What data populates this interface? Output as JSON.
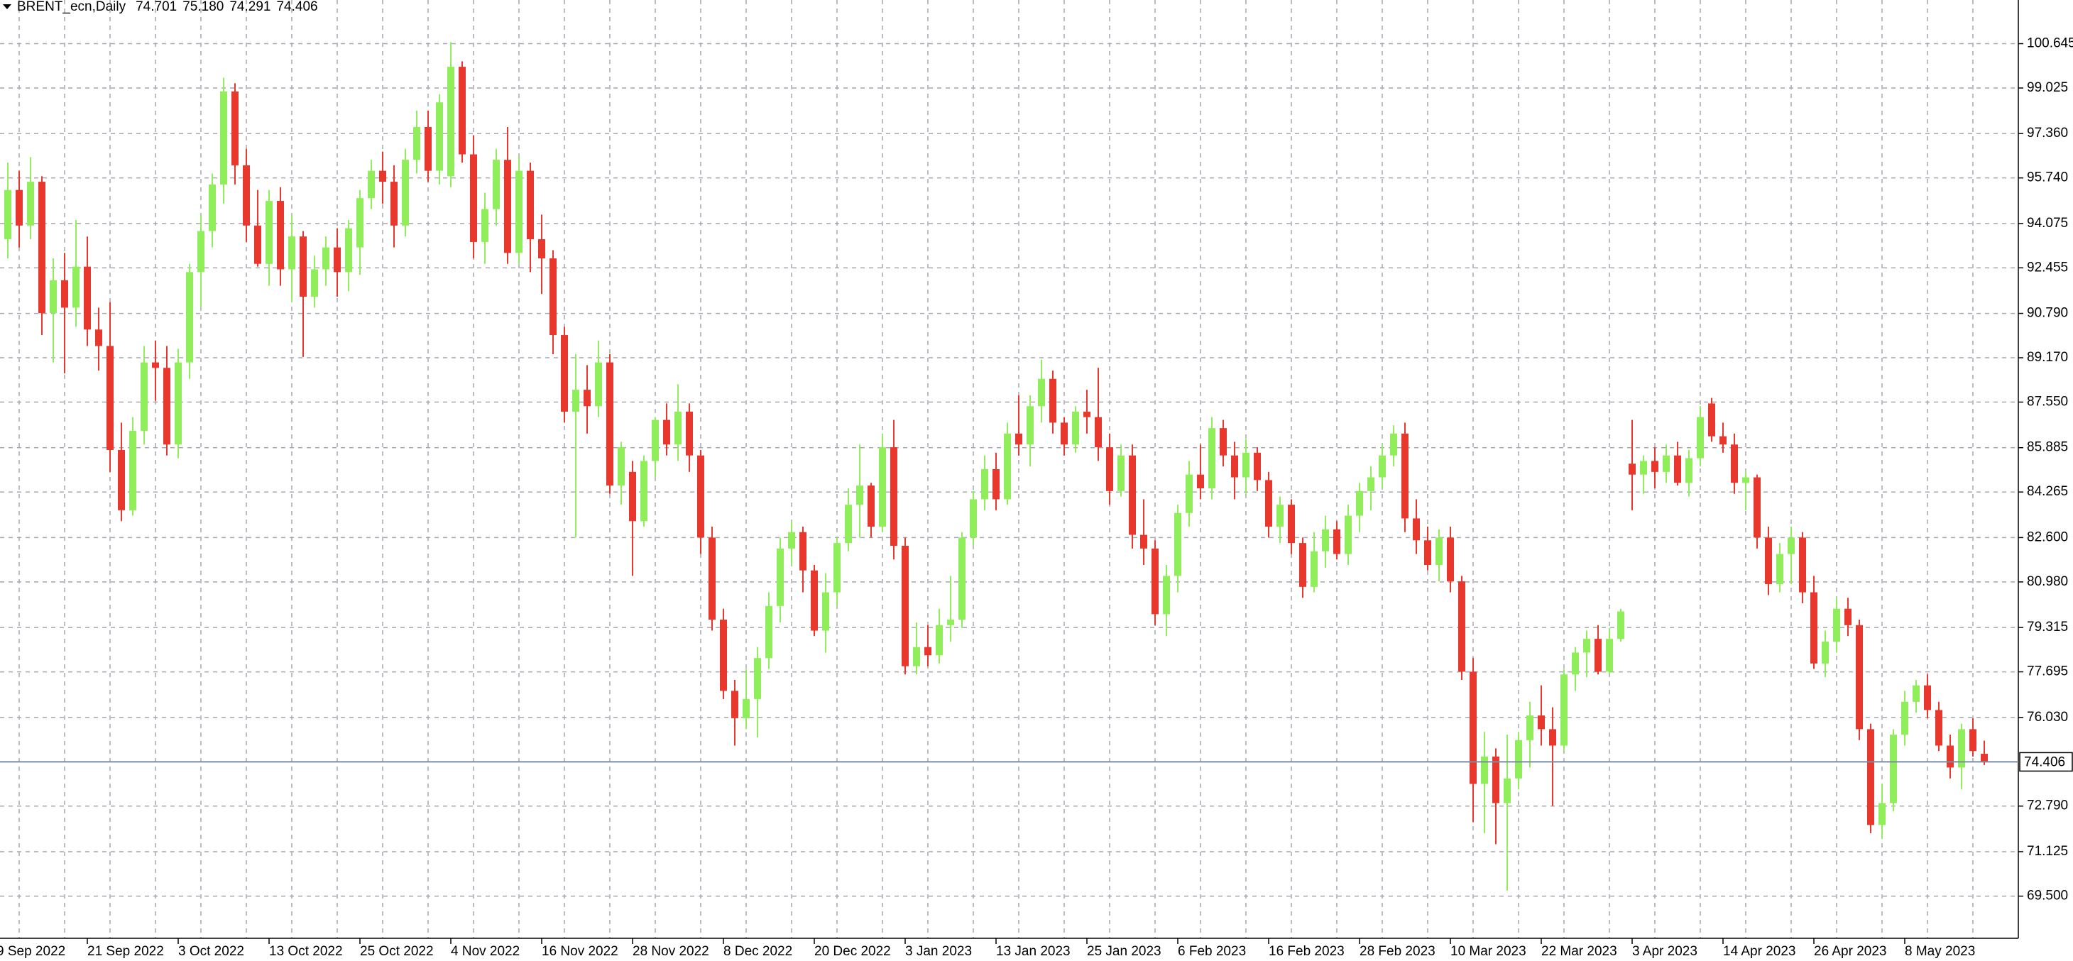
{
  "chart_data": {
    "type": "candlestick",
    "title": "BRENT_ecn,Daily",
    "value_labels": {
      "open": "74.701",
      "high": "75.180",
      "low": "74.291",
      "close": "74.406"
    },
    "up_color": "#8fee5a",
    "down_color": "#e8372d",
    "price_line_color": "#7a8ca0",
    "grid": true,
    "ylim": [
      67.96,
      102.24
    ],
    "yticks": [
      100.645,
      99.025,
      {
        "value": 97.36,
        "label": "97.360"
      },
      {
        "value": 95.74,
        "label": "95.740"
      },
      94.075,
      92.455,
      {
        "value": 90.79,
        "label": "90.790"
      },
      {
        "value": 89.17,
        "label": "89.170"
      },
      {
        "value": 87.55,
        "label": "87.550"
      },
      85.885,
      84.265,
      {
        "value": 82.6,
        "label": "82.600"
      },
      {
        "value": 80.98,
        "label": "80.980"
      },
      79.315,
      77.695,
      {
        "value": 76.03,
        "label": "76.030"
      },
      {
        "value": 72.79,
        "label": "72.790"
      },
      71.125,
      {
        "value": 69.5,
        "label": "69.500"
      }
    ],
    "categories": [
      "9 Sep 2022",
      null,
      null,
      null,
      null,
      null,
      null,
      null,
      "21 Sep 2022",
      null,
      null,
      null,
      null,
      null,
      null,
      null,
      "3 Oct 2022",
      null,
      null,
      null,
      null,
      null,
      null,
      null,
      "13 Oct 2022",
      null,
      null,
      null,
      null,
      null,
      null,
      null,
      "25 Oct 2022",
      null,
      null,
      null,
      null,
      null,
      null,
      null,
      "4 Nov 2022",
      null,
      null,
      null,
      null,
      null,
      null,
      null,
      "16 Nov 2022",
      null,
      null,
      null,
      null,
      null,
      null,
      null,
      "28 Nov 2022",
      null,
      null,
      null,
      null,
      null,
      null,
      null,
      "8 Dec 2022",
      null,
      null,
      null,
      null,
      null,
      null,
      null,
      "20 Dec 2022",
      null,
      null,
      null,
      null,
      null,
      null,
      null,
      "3 Jan 2023",
      null,
      null,
      null,
      null,
      null,
      null,
      null,
      "13 Jan 2023",
      null,
      null,
      null,
      null,
      null,
      null,
      null,
      "25 Jan 2023",
      null,
      null,
      null,
      null,
      null,
      null,
      null,
      "6 Feb 2023",
      null,
      null,
      null,
      null,
      null,
      null,
      null,
      "16 Feb 2023",
      null,
      null,
      null,
      null,
      null,
      null,
      null,
      "28 Feb 2023",
      null,
      null,
      null,
      null,
      null,
      null,
      null,
      "10 Mar 2023",
      null,
      null,
      null,
      null,
      null,
      null,
      null,
      "22 Mar 2023",
      null,
      null,
      null,
      null,
      null,
      null,
      null,
      "3 Apr 2023",
      null,
      null,
      null,
      null,
      null,
      null,
      null,
      "14 Apr 2023",
      null,
      null,
      null,
      null,
      null,
      null,
      null,
      "26 Apr 2023",
      null,
      null,
      null,
      null,
      null,
      null,
      null,
      "8 May 2023",
      null,
      null,
      null,
      null,
      null,
      null,
      null
    ],
    "open": [
      91.0,
      93.5,
      95.3,
      94.0,
      95.6,
      90.8,
      92.0,
      91.0,
      92.5,
      90.2,
      89.6,
      85.8,
      83.6,
      86.5,
      89.0,
      88.8,
      86.0,
      89.0,
      92.3,
      93.8,
      95.5,
      98.9,
      96.2,
      94.0,
      92.6,
      94.9,
      92.4,
      93.6,
      91.4,
      92.4,
      93.2,
      92.3,
      93.2,
      95.0,
      96.0,
      95.6,
      94.0,
      96.4,
      97.6,
      96.0,
      95.8,
      99.8,
      96.6,
      93.4,
      94.6,
      96.4,
      93.0,
      96.0,
      93.5,
      92.8,
      90.0,
      87.2,
      88.0,
      87.4,
      89.0,
      84.5,
      85.0,
      83.2,
      85.4,
      86.9,
      86.0,
      87.2,
      85.6,
      82.6,
      79.6,
      77.0,
      76.0,
      76.7,
      78.2,
      80.1,
      82.2,
      82.8,
      81.4,
      79.2,
      80.6,
      82.4,
      83.8,
      84.5,
      83.0,
      85.9,
      82.3,
      77.9,
      78.6,
      78.3,
      79.4,
      79.6,
      82.6,
      84.0,
      85.1,
      84.0,
      86.4,
      86.0,
      87.4,
      88.4,
      86.8,
      86.0,
      87.2,
      87.0,
      85.9,
      84.3,
      85.6,
      82.7,
      82.2,
      79.8,
      81.2,
      83.5,
      84.9,
      84.4,
      86.6,
      85.6,
      84.8,
      85.7,
      84.7,
      83.0,
      83.8,
      82.4,
      80.8,
      82.1,
      82.9,
      82.0,
      83.4,
      84.3,
      84.8,
      85.6,
      86.4,
      83.3,
      82.5,
      81.6,
      82.6,
      81.0,
      77.7,
      73.6,
      74.6,
      72.9,
      73.8,
      75.2,
      76.1,
      75.6,
      75.0,
      77.6,
      78.4,
      78.9,
      77.7,
      78.9,
      85.3,
      84.9,
      85.4,
      85.0,
      85.6,
      84.6,
      85.5,
      87.5,
      86.3,
      86.0,
      84.6,
      84.8,
      82.6,
      80.9,
      82.0,
      82.6,
      80.6,
      78.0,
      78.8,
      80.0,
      79.4,
      75.6,
      72.1,
      72.9,
      75.4,
      76.6,
      77.2,
      76.3,
      75.0,
      74.2,
      75.6,
      74.701
    ],
    "high": [
      94.5,
      96.3,
      96.0,
      96.5,
      95.8,
      92.8,
      93.0,
      94.2,
      93.6,
      91.0,
      91.2,
      86.8,
      87.0,
      89.6,
      89.8,
      89.6,
      89.5,
      92.6,
      94.4,
      95.9,
      99.4,
      99.2,
      96.8,
      95.3,
      95.3,
      95.4,
      94.4,
      93.8,
      92.9,
      93.6,
      93.9,
      94.2,
      95.3,
      96.4,
      96.7,
      96.2,
      96.8,
      98.2,
      98.2,
      98.8,
      100.7,
      100.0,
      97.3,
      95.2,
      96.8,
      97.6,
      96.5,
      96.3,
      94.4,
      93.1,
      90.3,
      89.3,
      88.9,
      89.8,
      89.3,
      86.1,
      85.4,
      85.6,
      87.0,
      87.5,
      88.2,
      87.5,
      85.8,
      83.0,
      80.0,
      77.4,
      77.8,
      78.6,
      80.6,
      82.6,
      83.2,
      83.0,
      81.6,
      81.3,
      82.6,
      84.4,
      86.0,
      84.6,
      86.4,
      86.9,
      82.6,
      79.5,
      79.4,
      80.0,
      81.2,
      82.8,
      84.3,
      85.6,
      85.7,
      86.8,
      87.8,
      87.8,
      89.1,
      88.7,
      87.0,
      87.4,
      88.0,
      88.8,
      86.4,
      86.0,
      86.0,
      84.0,
      82.5,
      81.6,
      83.8,
      85.4,
      86.0,
      87.0,
      86.9,
      86.1,
      86.2,
      85.9,
      85.0,
      84.1,
      84.0,
      82.6,
      82.8,
      83.4,
      83.2,
      83.8,
      84.6,
      85.2,
      86.0,
      86.7,
      86.8,
      84.0,
      83.0,
      82.9,
      83.0,
      81.2,
      78.2,
      75.5,
      74.9,
      75.4,
      75.5,
      76.6,
      77.2,
      76.4,
      77.8,
      78.6,
      79.2,
      79.4,
      79.3,
      80.0,
      86.9,
      85.6,
      85.9,
      86.0,
      86.1,
      85.8,
      87.4,
      87.7,
      86.8,
      86.4,
      85.0,
      84.9,
      83.0,
      82.4,
      83.0,
      82.8,
      81.2,
      79.2,
      80.4,
      80.4,
      79.6,
      75.8,
      73.6,
      75.6,
      77.0,
      77.4,
      77.6,
      76.6,
      75.4,
      75.8,
      76.0,
      75.18
    ],
    "low": [
      89.5,
      92.8,
      93.2,
      93.5,
      90.0,
      89.0,
      88.6,
      90.3,
      89.6,
      88.7,
      85.0,
      83.2,
      83.4,
      86.0,
      87.6,
      85.6,
      85.5,
      88.4,
      91.0,
      93.2,
      94.8,
      95.5,
      93.4,
      92.5,
      91.8,
      91.8,
      91.2,
      89.2,
      91.0,
      91.8,
      91.4,
      91.6,
      92.2,
      94.6,
      94.8,
      93.2,
      93.6,
      95.9,
      95.6,
      95.5,
      95.4,
      96.3,
      92.8,
      92.6,
      94.0,
      92.6,
      92.6,
      92.3,
      91.5,
      89.3,
      86.8,
      82.6,
      86.4,
      87.0,
      84.2,
      83.8,
      81.2,
      83.0,
      84.8,
      85.6,
      85.4,
      85.0,
      82.0,
      79.2,
      76.7,
      75.0,
      75.6,
      75.3,
      77.8,
      79.5,
      81.6,
      80.6,
      79.0,
      78.4,
      80.1,
      82.1,
      82.6,
      82.6,
      82.8,
      81.8,
      77.6,
      77.6,
      77.9,
      78.0,
      78.8,
      79.3,
      82.3,
      83.6,
      83.6,
      83.8,
      85.6,
      85.2,
      86.8,
      86.4,
      85.6,
      85.7,
      86.4,
      85.4,
      83.8,
      84.1,
      82.2,
      81.6,
      79.4,
      79.0,
      80.6,
      83.0,
      84.0,
      84.0,
      85.2,
      84.0,
      84.2,
      84.3,
      82.6,
      82.4,
      82.0,
      80.4,
      80.6,
      81.5,
      81.8,
      81.6,
      82.8,
      83.6,
      84.4,
      85.2,
      82.8,
      82.0,
      81.4,
      81.0,
      80.6,
      77.4,
      72.2,
      71.8,
      71.4,
      69.7,
      73.4,
      74.2,
      75.0,
      72.8,
      74.8,
      77.0,
      77.5,
      77.6,
      77.6,
      78.8,
      83.6,
      84.2,
      84.4,
      84.6,
      84.5,
      84.1,
      85.2,
      86.1,
      85.7,
      84.2,
      83.6,
      82.2,
      80.5,
      80.6,
      80.9,
      80.2,
      77.8,
      77.5,
      78.4,
      79.0,
      75.2,
      71.8,
      71.6,
      72.6,
      75.0,
      76.2,
      76.0,
      74.8,
      73.8,
      73.4,
      74.6,
      74.291
    ],
    "close": [
      93.5,
      95.3,
      94.0,
      95.6,
      90.8,
      92.0,
      91.0,
      92.5,
      90.2,
      89.6,
      85.8,
      83.6,
      86.5,
      89.0,
      88.8,
      86.0,
      89.0,
      92.3,
      93.8,
      95.5,
      98.9,
      96.2,
      94.0,
      92.6,
      94.9,
      92.4,
      93.6,
      91.4,
      92.4,
      93.2,
      92.3,
      93.9,
      95.0,
      96.0,
      95.6,
      94.0,
      96.4,
      97.6,
      96.0,
      98.5,
      99.8,
      96.6,
      93.4,
      94.6,
      96.4,
      93.0,
      96.0,
      93.5,
      92.8,
      90.0,
      87.2,
      88.0,
      87.4,
      89.0,
      84.5,
      85.9,
      83.2,
      85.4,
      86.9,
      86.0,
      87.2,
      85.6,
      82.6,
      79.6,
      77.0,
      76.0,
      76.7,
      78.2,
      80.1,
      82.2,
      82.8,
      81.4,
      79.2,
      80.6,
      82.4,
      83.8,
      84.5,
      83.0,
      85.9,
      82.3,
      77.9,
      78.6,
      78.3,
      79.4,
      79.6,
      82.6,
      84.0,
      85.1,
      84.0,
      86.4,
      86.0,
      87.4,
      88.4,
      86.8,
      86.0,
      87.2,
      87.0,
      85.9,
      84.3,
      85.6,
      82.7,
      82.2,
      79.8,
      81.2,
      83.5,
      84.9,
      84.4,
      86.6,
      85.6,
      84.8,
      85.7,
      84.7,
      83.0,
      83.8,
      82.4,
      80.8,
      82.1,
      82.9,
      82.0,
      83.4,
      84.3,
      84.8,
      85.6,
      86.4,
      83.3,
      82.5,
      81.6,
      82.6,
      81.0,
      77.7,
      73.6,
      74.6,
      72.9,
      73.8,
      75.2,
      76.1,
      75.6,
      75.0,
      77.6,
      78.4,
      78.9,
      77.7,
      78.9,
      79.9,
      84.9,
      85.4,
      85.0,
      85.6,
      84.6,
      85.5,
      87.0,
      86.3,
      86.0,
      84.6,
      84.8,
      82.6,
      80.9,
      82.0,
      82.6,
      80.6,
      78.0,
      78.8,
      80.0,
      79.4,
      75.6,
      72.1,
      72.9,
      75.4,
      76.6,
      77.2,
      76.3,
      75.0,
      74.2,
      75.6,
      74.8,
      74.406
    ]
  }
}
